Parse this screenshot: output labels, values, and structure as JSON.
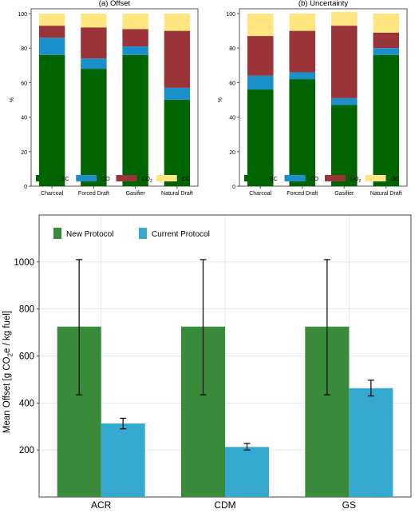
{
  "chart_data": [
    {
      "type": "bar",
      "stacked": true,
      "title": "(a) Offset",
      "ylabel": "%",
      "ylim": [
        0,
        100
      ],
      "yticks": [
        0,
        20,
        40,
        60,
        80,
        100
      ],
      "categories": [
        "Charcoal",
        "Forced Draft",
        "Gasifier",
        "Natural Draft"
      ],
      "series": [
        {
          "name": "BC",
          "color": "#006400",
          "values": [
            76,
            68,
            76,
            50
          ]
        },
        {
          "name": "CO",
          "color": "#1a8fc9",
          "values": [
            10,
            6,
            5,
            7
          ]
        },
        {
          "name": "CO",
          "sub": "2",
          "color": "#9b3438",
          "values": [
            7,
            18,
            10,
            33
          ]
        },
        {
          "name": "OC",
          "color": "#ffe680",
          "values": [
            7,
            8,
            9,
            10
          ]
        }
      ],
      "grid": false,
      "legend": "bottom"
    },
    {
      "type": "bar",
      "stacked": true,
      "title": "(b) Uncertainty",
      "ylabel": "%",
      "ylim": [
        0,
        100
      ],
      "yticks": [
        0,
        20,
        40,
        60,
        80,
        100
      ],
      "categories": [
        "Charcoal",
        "Forced Draft",
        "Gasifier",
        "Natural Draft"
      ],
      "series": [
        {
          "name": "BC",
          "color": "#006400",
          "values": [
            56,
            62,
            47,
            76
          ]
        },
        {
          "name": "CO",
          "color": "#1a8fc9",
          "values": [
            8,
            4,
            4,
            4
          ]
        },
        {
          "name": "CO",
          "sub": "2",
          "color": "#9b3438",
          "values": [
            23,
            24,
            42,
            9
          ]
        },
        {
          "name": "OC",
          "color": "#ffe680",
          "values": [
            13,
            10,
            8,
            11
          ]
        }
      ],
      "grid": false,
      "legend": "bottom"
    },
    {
      "type": "bar",
      "ylabel": "Mean Offset [g CO2e / kg fuel]",
      "ylabel_parts": {
        "pre": "Mean Offset [g CO",
        "sub": "2",
        "post": "e / kg fuel]"
      },
      "ylim": [
        0,
        1200
      ],
      "yticks": [
        200,
        400,
        600,
        800,
        1000
      ],
      "categories": [
        "ACR",
        "CDM",
        "GS"
      ],
      "series": [
        {
          "name": "New Protocol",
          "color": "#3a8a3c",
          "values": [
            725,
            725,
            725
          ],
          "err_low": [
            435,
            435,
            435
          ],
          "err_high": [
            1010,
            1010,
            1010
          ]
        },
        {
          "name": "Current Protocol",
          "color": "#36a9d1",
          "values": [
            313,
            213,
            463
          ],
          "err_low": [
            290,
            200,
            430
          ],
          "err_high": [
            335,
            228,
            497
          ]
        }
      ],
      "grid": true,
      "legend": "top-left"
    }
  ]
}
